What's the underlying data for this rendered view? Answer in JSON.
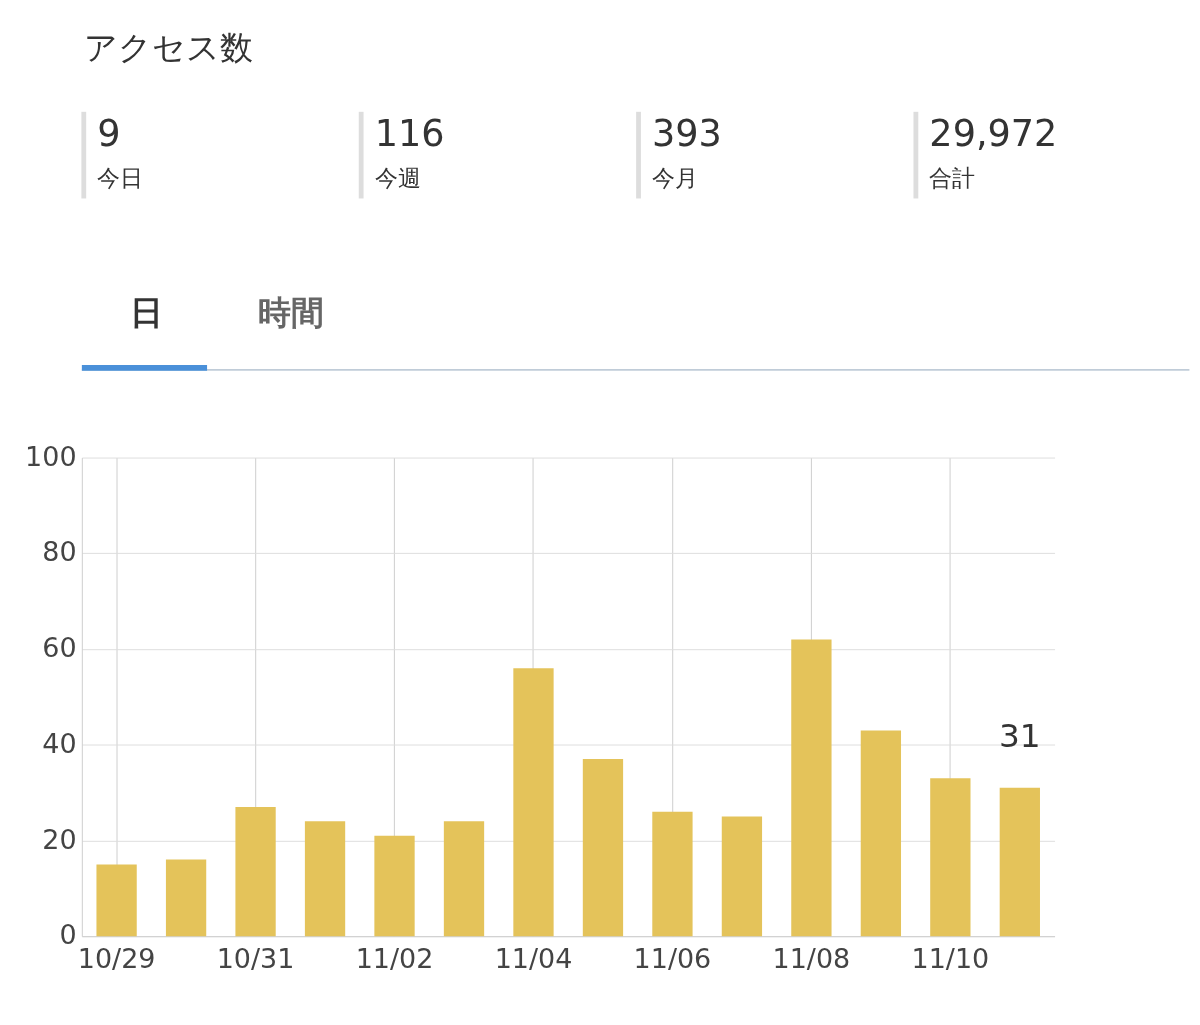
{
  "chart_data": [
    {
      "type": "other",
      "title": "アクセス数",
      "categories": [
        "今日",
        "今週",
        "今月",
        "合計"
      ],
      "value_labels": [
        "9",
        "116",
        "393",
        "29,972"
      ],
      "annotations": [
        "日",
        "時間"
      ]
    },
    {
      "type": "bar",
      "categories": [
        "10/29",
        null,
        "10/31",
        null,
        "11/02",
        null,
        "11/04",
        null,
        "11/06",
        null,
        "11/08",
        null,
        "11/10",
        null
      ],
      "series": [
        {
          "color": "#e4c35a",
          "values": [
            15,
            16,
            27,
            24,
            21,
            24,
            56,
            37,
            26,
            25,
            62,
            43,
            33,
            31
          ],
          "value_labels": [
            null,
            null,
            null,
            null,
            null,
            null,
            null,
            null,
            null,
            null,
            null,
            null,
            null,
            "31"
          ]
        }
      ],
      "ylim": [
        0,
        100
      ],
      "yticks": [
        0,
        20,
        40,
        60,
        80,
        100
      ],
      "grid": true
    }
  ]
}
